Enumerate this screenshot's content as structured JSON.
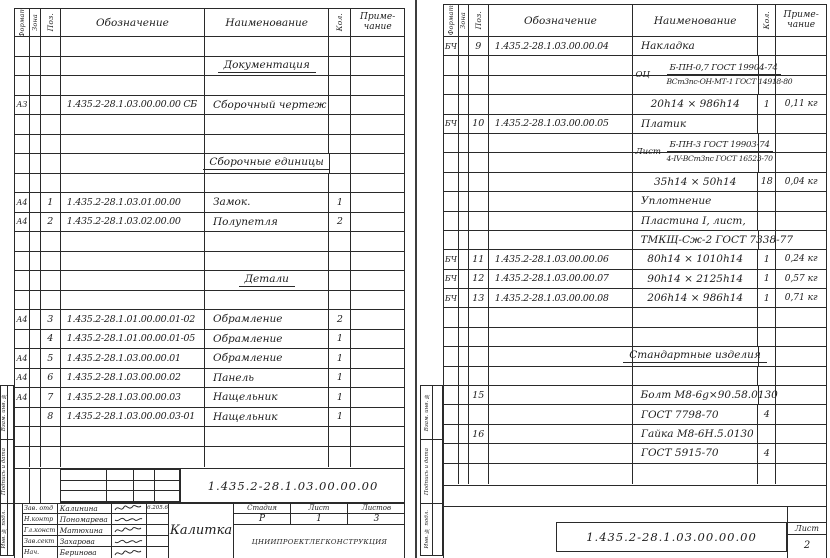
{
  "ink": "#1d1d1d",
  "line_color": "#2a2a2a",
  "table_header": {
    "format": "Формат",
    "zone": "Зона",
    "pos": "Поз.",
    "designation": "Обозначение",
    "name": "Наименование",
    "qty": "Кол.",
    "note1": "Приме-",
    "note2": "чание"
  },
  "left_page": {
    "rows": [
      {},
      {
        "n": "Документация",
        "sec": true
      },
      {},
      {
        "f": "А3",
        "d": "1.435.2-28.1.03.00.00.00 СБ",
        "n": "Сборочный  чертеж"
      },
      {},
      {},
      {
        "n": "Сборочные единицы",
        "sec": true
      },
      {},
      {
        "f": "А4",
        "p": "1",
        "d": "1.435.2-28.1.03.01.00.00",
        "n": "Замок.",
        "k": "1"
      },
      {
        "f": "А4",
        "p": "2",
        "d": "1.435.2-28.1.03.02.00.00",
        "n": "Полупетля",
        "k": "2"
      },
      {},
      {},
      {
        "n": "Детали",
        "sec": true
      },
      {},
      {
        "f": "А4",
        "p": "3",
        "d": "1.435.2-28.1.01.00.00.01-02",
        "n": "Обрамление",
        "k": "2"
      },
      {
        "p": "4",
        "d": "1.435.2-28.1.01.00.00.01-05",
        "n": "Обрамление",
        "k": "1"
      },
      {
        "f": "А4",
        "p": "5",
        "d": "1.435.2-28.1.03.00.00.01",
        "n": "Обрамление",
        "k": "1"
      },
      {
        "f": "А4",
        "p": "6",
        "d": "1.435.2-28.1.03.00.00.02",
        "n": "Панель",
        "k": "1"
      },
      {
        "f": "А4",
        "p": "7",
        "d": "1.435.2-28.1.03.00.00.03",
        "n": "Нащельник",
        "k": "1"
      },
      {
        "p": "8",
        "d": "1.435.2-28.1.03.00.00.03-01",
        "n": "Нащельник",
        "k": "1"
      },
      {},
      {}
    ],
    "margin_stamps": [
      "Взам. инв. №",
      "Подпись и дата",
      "Инв. № подл."
    ],
    "title_block": {
      "doc_number": "1.435.2-28.1.03.00.00.00",
      "title": "Калитка",
      "stage_label": "Стадия",
      "sheet_label": "Лист",
      "sheets_label": "Листов",
      "stage": "Р",
      "sheet": "1",
      "sheets": "3",
      "organization": "ЦНИИПРОЕКТЛЕГКОНСТРУКЦИЯ",
      "signatures": [
        {
          "role": "Зав. отд",
          "name": "Калинина",
          "date": "6.205.6"
        },
        {
          "role": "Н.контр",
          "name": "Пономарева",
          "date": ""
        },
        {
          "role": "Гл.конст",
          "name": "Матюхина",
          "date": ""
        },
        {
          "role": "Зав.сект",
          "name": "Захарова",
          "date": ""
        },
        {
          "role": "Нач.",
          "name": "Беринова",
          "date": ""
        }
      ]
    }
  },
  "right_page": {
    "rows": [
      {
        "f": "БЧ",
        "p": "9",
        "d": "1.435.2-28.1.03.00.00.04",
        "n": "Накладка"
      },
      {
        "fr": "t",
        "n": "Б-ПН-0,7 ГОСТ 19904-74"
      },
      {
        "fr": "b",
        "pre": "ОЦ",
        "n": "ВСт3пс-ОН-МТ-1 ГОСТ 14918-80"
      },
      {
        "n": "20h14 × 986h14",
        "al": "c",
        "k": "1",
        "nt": "0,11 кг"
      },
      {
        "f": "БЧ",
        "p": "10",
        "d": "1.435.2-28.1.03.00.00.05",
        "n": "Платик"
      },
      {
        "fr": "t",
        "n": "Б-ПН-3 ГОСТ 19903-74"
      },
      {
        "fr": "b",
        "pre": "Лист",
        "n": "4-IV-ВСт3пс ГОСТ 16523-70"
      },
      {
        "n": "35h14 × 50h14",
        "al": "c",
        "k": "18",
        "nt": "0,04 кг"
      },
      {
        "n": "Уплотнение"
      },
      {
        "n": "Пластина I,  лист,"
      },
      {
        "n": "ТМКЩ-Сж-2 ГОСТ 7338-77"
      },
      {
        "f": "БЧ",
        "p": "11",
        "d": "1.435.2-28.1.03.00.00.06",
        "n": "80h14 × 1010h14",
        "al": "c",
        "k": "1",
        "nt": "0,24 кг"
      },
      {
        "f": "БЧ",
        "p": "12",
        "d": "1.435.2-28.1.03.00.00.07",
        "n": "90h14 × 2125h14",
        "al": "c",
        "k": "1",
        "nt": "0,57 кг"
      },
      {
        "f": "БЧ",
        "p": "13",
        "d": "1.435.2-28.1.03.00.00.08",
        "n": "206h14 × 986h14",
        "al": "c",
        "k": "1",
        "nt": "0,71 кг"
      },
      {},
      {},
      {
        "n": "Стандартные изделия",
        "sec": true
      },
      {},
      {
        "p": "15",
        "n": "Болт М8-6g×90.58.0130"
      },
      {
        "n": "ГОСТ 7798-70",
        "k": "4"
      },
      {
        "p": "16",
        "n": "Гайка М8-6Н.5.0130"
      },
      {
        "n": "ГОСТ 5915-70",
        "k": "4"
      },
      {}
    ],
    "margin_stamps": [
      "Взам. инв. №",
      "Подпись и дата",
      "Инв. № подл."
    ],
    "footer": {
      "doc_number": "1.435.2-28.1.03.00.00.00",
      "sheet_label": "Лист",
      "sheet": "2"
    }
  }
}
